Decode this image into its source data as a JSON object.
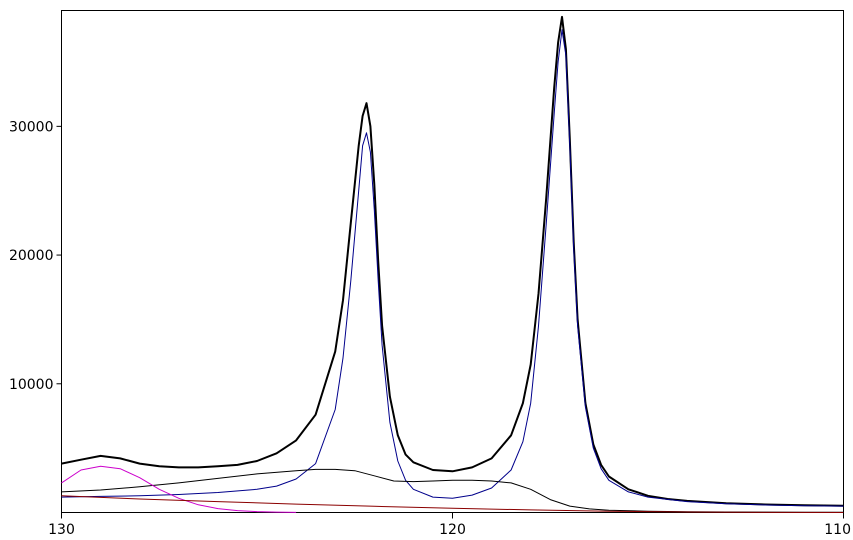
{
  "chart_data": {
    "type": "line",
    "title": "",
    "xlabel": "",
    "ylabel": "",
    "x_reversed": true,
    "xlim": [
      130,
      110
    ],
    "ylim": [
      0,
      39000
    ],
    "x_ticks": [
      {
        "value": 130,
        "label": "130"
      },
      {
        "value": 120,
        "label": "120"
      },
      {
        "value": 110,
        "label": "110"
      }
    ],
    "y_ticks": [
      {
        "value": 10000,
        "label": "10000"
      },
      {
        "value": 20000,
        "label": "20000"
      },
      {
        "value": 30000,
        "label": "30000"
      }
    ],
    "grid": false,
    "legend": "none",
    "series": [
      {
        "kind": "measured-noisy",
        "color": "#000000",
        "x": [
          130,
          129.5,
          129,
          128.5,
          128,
          127.5,
          127,
          126.5,
          126,
          125.5,
          125,
          124.5,
          124,
          123.5,
          123,
          122.8,
          122.6,
          122.4,
          122.3,
          122.2,
          122.1,
          122.0,
          121.9,
          121.8,
          121.6,
          121.4,
          121.2,
          121,
          120.5,
          120,
          119.5,
          119,
          118.5,
          118.2,
          118,
          117.8,
          117.6,
          117.4,
          117.3,
          117.2,
          117.1,
          117.0,
          116.9,
          116.8,
          116.6,
          116.4,
          116.2,
          116,
          115.5,
          115,
          114.5,
          114,
          113,
          112,
          111,
          110
        ],
        "y": [
          3800,
          4100,
          4400,
          4200,
          3800,
          3600,
          3500,
          3500,
          3600,
          3700,
          4000,
          4600,
          5600,
          7600,
          12500,
          16500,
          22500,
          28500,
          30800,
          31800,
          30000,
          25500,
          19500,
          14500,
          9000,
          6000,
          4500,
          3900,
          3300,
          3200,
          3500,
          4200,
          6000,
          8500,
          11500,
          17000,
          24500,
          33000,
          36500,
          38500,
          36000,
          29000,
          21000,
          15000,
          8500,
          5300,
          3700,
          2800,
          1800,
          1300,
          1050,
          900,
          720,
          620,
          560,
          520
        ]
      },
      {
        "kind": "fit-envelope",
        "color": "#00008b",
        "x": [
          130,
          129,
          128,
          127,
          126,
          125,
          124.5,
          124,
          123.5,
          123,
          122.8,
          122.6,
          122.4,
          122.3,
          122.2,
          122.1,
          122.0,
          121.9,
          121.8,
          121.6,
          121.4,
          121.2,
          121,
          120.5,
          120,
          119.5,
          119,
          118.5,
          118.2,
          118,
          117.8,
          117.6,
          117.4,
          117.3,
          117.2,
          117.1,
          117.0,
          116.9,
          116.8,
          116.6,
          116.4,
          116.2,
          116,
          115.5,
          115,
          114,
          113,
          112,
          111,
          110
        ],
        "y": [
          1200,
          1250,
          1300,
          1400,
          1550,
          1800,
          2050,
          2600,
          3800,
          8000,
          12000,
          18000,
          25000,
          28500,
          29500,
          28000,
          23500,
          18000,
          13000,
          7000,
          4000,
          2500,
          1800,
          1200,
          1100,
          1350,
          1900,
          3300,
          5500,
          8500,
          14500,
          22500,
          31000,
          35000,
          37500,
          35500,
          28500,
          20500,
          14500,
          8200,
          5000,
          3400,
          2500,
          1600,
          1200,
          850,
          680,
          580,
          530,
          500
        ]
      },
      {
        "kind": "broad-component",
        "color": "#000000",
        "x": [
          130,
          129,
          128,
          127,
          126,
          125,
          124,
          123.5,
          123,
          122.5,
          122,
          121.5,
          121,
          120.5,
          120,
          119.5,
          119,
          118.5,
          118,
          117.5,
          117,
          116.5,
          116,
          115,
          114,
          113,
          112,
          111,
          110
        ],
        "y": [
          1600,
          1750,
          2000,
          2300,
          2650,
          3000,
          3250,
          3350,
          3350,
          3250,
          2850,
          2450,
          2400,
          2450,
          2500,
          2500,
          2450,
          2300,
          1800,
          1000,
          500,
          280,
          180,
          100,
          60,
          40,
          30,
          20,
          15
        ]
      },
      {
        "kind": "low-component",
        "color": "#cc00cc",
        "x": [
          130,
          129.5,
          129,
          128.5,
          128,
          127.5,
          127,
          126.5,
          126,
          125.5,
          125,
          124.5,
          124
        ],
        "y": [
          2300,
          3300,
          3600,
          3400,
          2700,
          1800,
          1100,
          600,
          300,
          150,
          70,
          30,
          10
        ]
      },
      {
        "kind": "baseline",
        "color": "#8b0000",
        "x": [
          130,
          128,
          126,
          124,
          122,
          120,
          118,
          116,
          114,
          112,
          110
        ],
        "y": [
          1300,
          1050,
          850,
          650,
          480,
          330,
          200,
          100,
          40,
          10,
          0
        ]
      }
    ]
  }
}
